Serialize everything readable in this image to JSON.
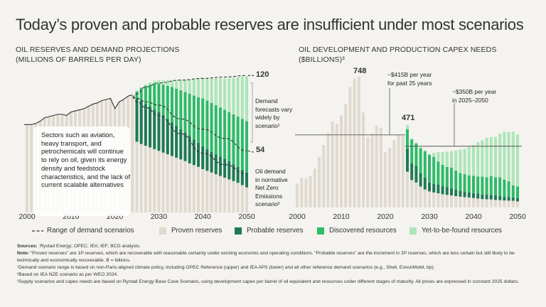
{
  "title": "Today’s proven and probable reserves are insufficient under most scenarios",
  "colors": {
    "proven": "#e0d9d0",
    "probable": "#1d7a55",
    "discovered": "#2dbb68",
    "yet_to_find": "#abe6b8",
    "line": "#333333",
    "background": "#f4f3ef"
  },
  "legend": {
    "range": "Range of demand scenarios",
    "proven": "Proven reserves",
    "probable": "Probable reserves",
    "discovered": "Discovered resources",
    "yet_to_find": "Yet-to-be-found resources"
  },
  "chart_data": [
    {
      "type": "bar",
      "stacked": true,
      "title_line1": "OIL RESERVES AND DEMAND PROJECTIONS",
      "title_line2": "(MILLIONS OF BARRELS PER DAY)",
      "x_ticks": [
        "2000",
        "2010",
        "2020",
        "2030",
        "2040",
        "2050"
      ],
      "historical": {
        "years": [
          2000,
          2001,
          2002,
          2003,
          2004,
          2005,
          2006,
          2007,
          2008,
          2009,
          2010,
          2011,
          2012,
          2013,
          2014,
          2015,
          2016,
          2017,
          2018,
          2019,
          2020,
          2021,
          2022,
          2023,
          2024
        ],
        "demand": [
          77,
          77,
          78,
          80,
          83,
          84,
          85,
          86,
          86,
          85,
          88,
          89,
          90,
          91,
          93,
          95,
          96,
          98,
          99,
          100,
          91,
          97,
          99,
          102,
          103
        ]
      },
      "projection_years": [
        2025,
        2026,
        2027,
        2028,
        2029,
        2030,
        2031,
        2032,
        2033,
        2034,
        2035,
        2036,
        2037,
        2038,
        2039,
        2040,
        2041,
        2042,
        2043,
        2044,
        2045,
        2046,
        2047,
        2048,
        2049,
        2050
      ],
      "series": [
        {
          "name": "Proven reserves",
          "key": "proven",
          "values": [
            62,
            60,
            58.5,
            57,
            55.5,
            54,
            52.5,
            51,
            49.5,
            48,
            46.5,
            45,
            43,
            41.5,
            40,
            38,
            36.5,
            35,
            33.5,
            32,
            30.5,
            29,
            27.5,
            26,
            24,
            22
          ]
        },
        {
          "name": "Probable reserves",
          "key": "probable",
          "values": [
            38,
            38,
            36.5,
            36,
            34.5,
            34,
            32.5,
            31,
            29.5,
            28,
            26.5,
            25,
            24,
            22.5,
            21,
            20,
            19,
            18,
            17.5,
            17,
            16.5,
            16,
            14.5,
            14,
            13.5,
            13
          ]
        },
        {
          "name": "Discovered resources",
          "key": "discovered",
          "values": [
            6,
            11,
            16,
            19,
            23,
            25,
            27,
            29,
            31,
            32.5,
            34,
            35.5,
            37,
            38.5,
            40,
            42,
            42.5,
            43,
            43,
            43,
            43,
            43,
            44,
            44,
            44.5,
            45
          ]
        },
        {
          "name": "Yet-to-be-found resources",
          "key": "yet_to_find",
          "values": [
            1,
            1,
            1.5,
            2,
            2.5,
            3,
            4,
            5,
            6,
            7.5,
            9,
            11,
            12.5,
            14.5,
            16,
            17.5,
            19.5,
            21.5,
            23.5,
            25.5,
            27.5,
            29.5,
            32,
            34.5,
            37,
            39.5
          ]
        }
      ],
      "demand_scenarios": {
        "years": [
          2024,
          2025,
          2027,
          2030,
          2035,
          2040,
          2045,
          2050
        ],
        "upper": [
          101,
          104,
          110,
          113.5,
          116,
          117.5,
          118.7,
          120
        ],
        "lower": [
          101,
          100,
          97,
          94,
          82,
          73,
          65,
          54
        ],
        "net_zero": [
          101,
          97,
          92,
          85,
          69,
          52,
          42,
          34
        ]
      },
      "labels": {
        "upper_value": "120",
        "lower_value": "54",
        "range_note": [
          "Demand",
          "forecasts vary",
          "widely by",
          "scenario¹"
        ],
        "nze_note": [
          "Oil demand",
          "in normative",
          "Net Zero",
          "Emissions",
          "scenario²"
        ],
        "callout": "Sectors such as aviation, heavy transport, and petrochemicals will continue to rely on oil, given its energy density and feedstock characteristics, and the lack of current scalable alternatives"
      }
    },
    {
      "type": "bar",
      "stacked": true,
      "title_line1": "OIL DEVELOPMENT AND PRODUCTION CAPEX NEEDS",
      "title_line2": "($BILLIONS)³",
      "x_ticks": [
        "2000",
        "2010",
        "2020",
        "2030",
        "2040",
        "2050"
      ],
      "historical": {
        "years": [
          2000,
          2001,
          2002,
          2003,
          2004,
          2005,
          2006,
          2007,
          2008,
          2009,
          2010,
          2011,
          2012,
          2013,
          2014,
          2015,
          2016,
          2017,
          2018,
          2019,
          2020,
          2021,
          2022,
          2023,
          2024
        ],
        "capex": [
          136,
          170,
          166,
          180,
          221,
          288,
          357,
          426,
          493,
          479,
          527,
          592,
          691,
          737,
          748,
          543,
          403,
          426,
          468,
          455,
          316,
          339,
          383,
          417,
          411
        ]
      },
      "projection_years": [
        2025,
        2026,
        2027,
        2028,
        2029,
        2030,
        2031,
        2032,
        2033,
        2034,
        2035,
        2036,
        2037,
        2038,
        2039,
        2040,
        2041,
        2042,
        2043,
        2044,
        2045,
        2046,
        2047,
        2048,
        2049,
        2050
      ],
      "series": [
        {
          "name": "Proven reserves",
          "key": "proven",
          "values": [
            204,
            156,
            142,
            119,
            102,
            91,
            85,
            80,
            75,
            71,
            68,
            64,
            61,
            58,
            56,
            53,
            50,
            47,
            46,
            45,
            42,
            41,
            39,
            38,
            37,
            34
          ]
        },
        {
          "name": "Probable reserves",
          "key": "probable",
          "values": [
            131,
            95,
            95,
            78,
            68,
            51,
            51,
            49,
            47,
            44,
            41,
            38,
            34,
            33,
            29,
            28,
            29,
            28,
            26,
            26,
            26,
            23,
            22,
            20,
            19,
            18
          ]
        },
        {
          "name": "Discovered resources",
          "key": "discovered",
          "values": [
            113,
            138,
            129,
            142,
            152,
            159,
            153,
            133,
            122,
            116,
            119,
            108,
            102,
            99,
            98,
            99,
            97,
            101,
            100,
            108,
            104,
            108,
            98,
            91,
            70,
            67
          ]
        },
        {
          "name": "Yet-to-be-found resources",
          "key": "yet_to_find",
          "values": [
            23,
            4,
            4,
            4,
            4,
            5,
            23,
            54,
            72,
            88,
            94,
            116,
            135,
            145,
            163,
            177,
            197,
            208,
            226,
            224,
            231,
            249,
            274,
            283,
            307,
            299
          ]
        }
      ],
      "reference_lines": [
        {
          "value": 415,
          "from": 2000,
          "to": 2025,
          "label": [
            "~$415B per year",
            "for past 25 years"
          ]
        },
        {
          "value": 350,
          "from": 2025,
          "to": 2050,
          "label": [
            "~$350B per year",
            "in 2025–2050"
          ]
        }
      ],
      "data_labels": [
        {
          "year": 2014,
          "text": "748"
        },
        {
          "year": 2025,
          "text": "471"
        }
      ]
    }
  ],
  "footnotes": {
    "sources_label": "Sources:",
    "sources": " :Rystad Energy; OPEC; IEA; IEF; BCG analysis.",
    "note_label": "Note:",
    "note": " “Proven reserves” are 1P reserves, which are recoverable with reasonable certainty under existing economic and operating conditions. “Probable reserves” are the increment in 2P reserves, which are less certain but still likely to be technically and economically recoverable. B = billions.",
    "f1": "¹Demand scenario range is based on non-Paris-aligned climate policy, including OPEC Reference (upper) and IEA APS (lower) and all other reference demand scenarios (e.g., Shell, ExxonMobil, bp).",
    "f2": "²Based on IEA NZE scenario as per WEO 2024.",
    "f3": "³Supply scenarios and capex needs are based on Rystad Energy Base Case Scenario, using development capex per barrel of oil equivalent and resources under different stages of maturity. All prices are expressed in constant 2025 dollars."
  }
}
